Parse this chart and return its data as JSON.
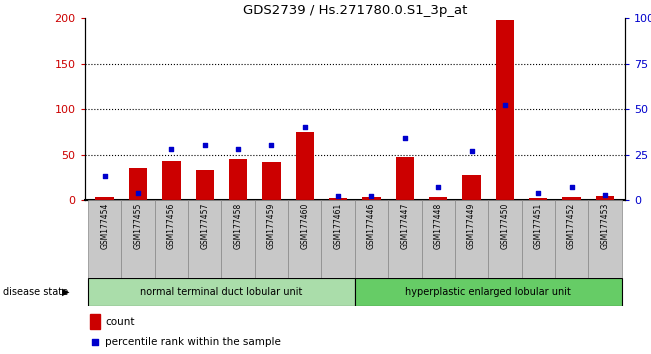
{
  "title": "GDS2739 / Hs.271780.0.S1_3p_at",
  "samples": [
    "GSM177454",
    "GSM177455",
    "GSM177456",
    "GSM177457",
    "GSM177458",
    "GSM177459",
    "GSM177460",
    "GSM177461",
    "GSM177446",
    "GSM177447",
    "GSM177448",
    "GSM177449",
    "GSM177450",
    "GSM177451",
    "GSM177452",
    "GSM177453"
  ],
  "counts": [
    3,
    35,
    43,
    33,
    45,
    42,
    75,
    2,
    3,
    47,
    3,
    27,
    198,
    2,
    3,
    4
  ],
  "percentiles": [
    13,
    4,
    28,
    30,
    28,
    30,
    40,
    2,
    2,
    34,
    7,
    27,
    52,
    4,
    7,
    3
  ],
  "group1_label": "normal terminal duct lobular unit",
  "group2_label": "hyperplastic enlarged lobular unit",
  "group1_count": 8,
  "group2_count": 8,
  "disease_state_label": "disease state",
  "count_label": "count",
  "percentile_label": "percentile rank within the sample",
  "ylim_left": [
    0,
    200
  ],
  "ylim_right": [
    0,
    100
  ],
  "yticks_left": [
    0,
    50,
    100,
    150,
    200
  ],
  "yticks_right": [
    0,
    25,
    50,
    75,
    100
  ],
  "ytick_labels_right": [
    "0",
    "25",
    "50",
    "75",
    "100%"
  ],
  "bar_color": "#cc0000",
  "dot_color": "#0000cc",
  "background_color": "#ffffff",
  "bar_color_left": "#cc0000",
  "tick_color_right": "#0000cc",
  "group1_color": "#aaddaa",
  "group2_color": "#66cc66",
  "tick_bg_color": "#c8c8c8"
}
